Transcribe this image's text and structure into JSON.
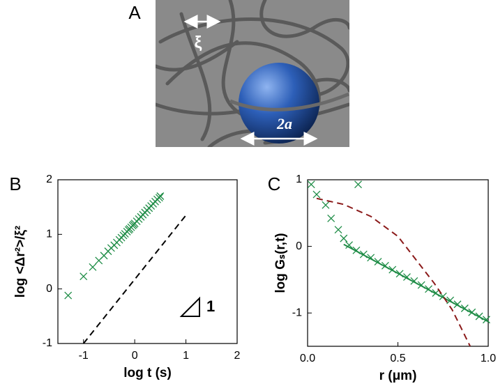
{
  "panel_a": {
    "panel": "A",
    "labels": [
      "ξ",
      "2a"
    ]
  },
  "chart_data": [
    {
      "type": "scatter",
      "panel": "B",
      "xlabel": "log t (s)",
      "ylabel": "log <Δr²>/ξ²",
      "xlim": [
        -1.5,
        2
      ],
      "ylim": [
        -1,
        2
      ],
      "xticks": [
        -1,
        0,
        1,
        2
      ],
      "yticks": [
        -1,
        0,
        1,
        2
      ],
      "annotation": "1",
      "series": [
        {
          "mode": "markers",
          "color": "#1e8c46",
          "x": [
            -1.3,
            -1.0,
            -0.82,
            -0.7,
            -0.6,
            -0.52,
            -0.46,
            -0.4,
            -0.35,
            -0.3,
            -0.26,
            -0.22,
            -0.19,
            -0.15,
            -0.12,
            -0.1,
            -0.07,
            -0.04,
            -0.02,
            0.0,
            0.04,
            0.08,
            0.12,
            0.16,
            0.2,
            0.24,
            0.28,
            0.32,
            0.36,
            0.4,
            0.44,
            0.48,
            0.5
          ],
          "values": [
            -0.12,
            0.23,
            0.4,
            0.52,
            0.61,
            0.69,
            0.75,
            0.8,
            0.85,
            0.9,
            0.94,
            0.98,
            1.01,
            1.05,
            1.08,
            1.1,
            1.13,
            1.16,
            1.18,
            1.2,
            1.24,
            1.28,
            1.32,
            1.36,
            1.4,
            1.44,
            1.48,
            1.52,
            1.56,
            1.6,
            1.64,
            1.67,
            1.7
          ]
        },
        {
          "mode": "line",
          "color": "#1e8c46",
          "x": [
            -0.3,
            0.55
          ],
          "values": [
            0.9,
            1.75
          ]
        },
        {
          "mode": "dashed",
          "color": "#000000",
          "x": [
            -1,
            1
          ],
          "values": [
            -1,
            1.35
          ]
        }
      ]
    },
    {
      "type": "scatter",
      "panel": "C",
      "xlabel": "r (μm)",
      "ylabel": "log Gₛ(r,t)",
      "xlim": [
        0,
        1
      ],
      "ylim": [
        -1.5,
        1
      ],
      "xticks": [
        {
          "value": 0,
          "label": "0.0"
        },
        0.5,
        {
          "value": 1,
          "label": "1.0"
        }
      ],
      "yticks": [
        -1,
        0,
        1
      ],
      "series": [
        {
          "mode": "markers",
          "color": "#1e8c46",
          "x": [
            0.02,
            0.05,
            0.1,
            0.13,
            0.17,
            0.2,
            0.23,
            0.28,
            0.27,
            0.31,
            0.35,
            0.39,
            0.43,
            0.47,
            0.51,
            0.55,
            0.59,
            0.63,
            0.67,
            0.71,
            0.75,
            0.79,
            0.83,
            0.87,
            0.91,
            0.95,
            0.99
          ],
          "values": [
            0.93,
            0.78,
            0.62,
            0.42,
            0.25,
            0.12,
            0.02,
            0.93,
            -0.06,
            -0.12,
            -0.17,
            -0.23,
            -0.29,
            -0.35,
            -0.41,
            -0.46,
            -0.52,
            -0.58,
            -0.64,
            -0.7,
            -0.75,
            -0.81,
            -0.87,
            -0.93,
            -0.99,
            -1.05,
            -1.1
          ]
        },
        {
          "mode": "line",
          "color": "#1e8c46",
          "x": [
            0.2,
            1.0
          ],
          "values": [
            0.03,
            -1.13
          ]
        },
        {
          "mode": "dashed",
          "color": "#8b1a1a",
          "x": [
            0.05,
            0.2,
            0.35,
            0.5,
            0.6,
            0.7,
            0.8,
            0.9
          ],
          "values": [
            0.72,
            0.63,
            0.45,
            0.15,
            -0.2,
            -0.55,
            -0.95,
            -1.5
          ]
        }
      ]
    }
  ]
}
